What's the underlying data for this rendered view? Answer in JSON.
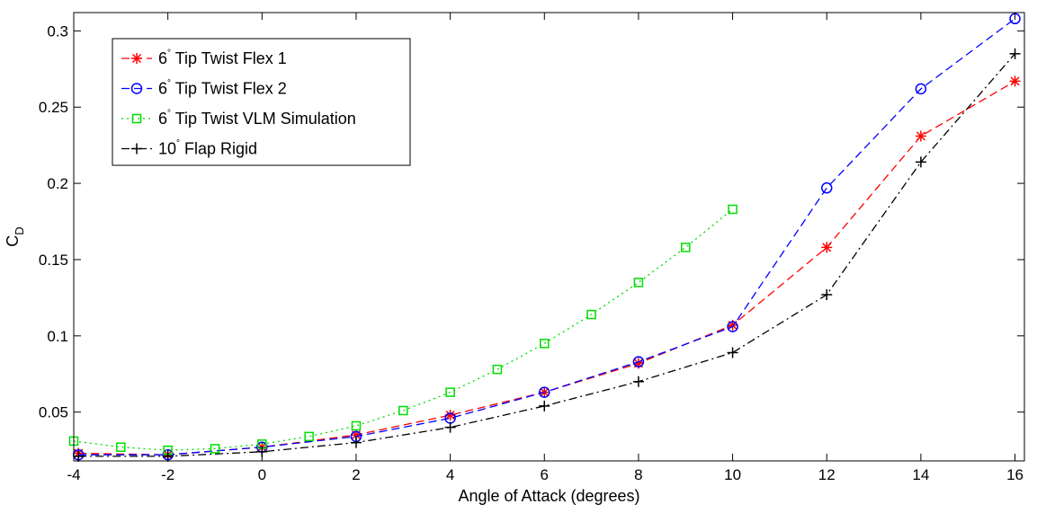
{
  "chart_data": {
    "type": "line",
    "title": "",
    "xlabel": "Angle of Attack (degrees)",
    "ylabel": "C_D",
    "ylabel_main": "C",
    "ylabel_sub": "D",
    "xlim": [
      -4,
      16.2
    ],
    "ylim": [
      0.018,
      0.312
    ],
    "xticks": [
      -4,
      -2,
      0,
      2,
      4,
      6,
      8,
      10,
      12,
      14,
      16
    ],
    "xtick_labels": [
      "-4",
      "-2",
      "0",
      "2",
      "4",
      "6",
      "8",
      "10",
      "12",
      "14",
      "16"
    ],
    "yticks": [
      0.05,
      0.1,
      0.15,
      0.2,
      0.25,
      0.3
    ],
    "ytick_labels": [
      "0.05",
      "0.1",
      "0.15",
      "0.2",
      "0.25",
      "0.3"
    ],
    "grid": false,
    "legend_position": "top-left",
    "series": [
      {
        "name": "6° Tip Twist Flex 1",
        "legend_main": "6",
        "legend_rest": " Tip Twist Flex 1",
        "color": "#ff0000",
        "line": "dashed",
        "marker": "asterisk",
        "x": [
          -3.9,
          -2.0,
          0.0,
          2.0,
          4.0,
          6.0,
          8.0,
          10.0,
          12.0,
          14.0,
          16.0
        ],
        "y": [
          0.023,
          0.022,
          0.027,
          0.035,
          0.048,
          0.063,
          0.082,
          0.107,
          0.158,
          0.231,
          0.267
        ]
      },
      {
        "name": "6° Tip Twist Flex 2",
        "legend_main": "6",
        "legend_rest": " Tip Twist Flex 2",
        "color": "#0000ff",
        "line": "dashed",
        "marker": "circle",
        "x": [
          -3.9,
          -2.0,
          0.0,
          2.0,
          4.0,
          6.0,
          8.0,
          10.0,
          12.0,
          14.0,
          16.0
        ],
        "y": [
          0.022,
          0.022,
          0.027,
          0.034,
          0.046,
          0.063,
          0.083,
          0.106,
          0.197,
          0.262,
          0.308
        ]
      },
      {
        "name": "6° Tip Twist VLM Simulation",
        "legend_main": "6",
        "legend_rest": " Tip Twist VLM Simulation",
        "color": "#00dd00",
        "line": "dotted",
        "marker": "square",
        "x": [
          -4,
          -3,
          -2,
          -1,
          0,
          1,
          2,
          3,
          4,
          5,
          6,
          7,
          8,
          9,
          10
        ],
        "y": [
          0.031,
          0.027,
          0.025,
          0.026,
          0.029,
          0.034,
          0.041,
          0.051,
          0.063,
          0.078,
          0.095,
          0.114,
          0.135,
          0.158,
          0.183
        ]
      },
      {
        "name": "10° Flap Rigid",
        "legend_main": "10",
        "legend_rest": " Flap Rigid",
        "color": "#000000",
        "line": "dashdot",
        "marker": "plus",
        "x": [
          -3.9,
          -2.0,
          0.0,
          2.0,
          4.0,
          6.0,
          8.0,
          10.0,
          12.0,
          14.0,
          16.0
        ],
        "y": [
          0.021,
          0.021,
          0.024,
          0.03,
          0.04,
          0.054,
          0.07,
          0.089,
          0.127,
          0.214,
          0.285
        ]
      }
    ]
  }
}
